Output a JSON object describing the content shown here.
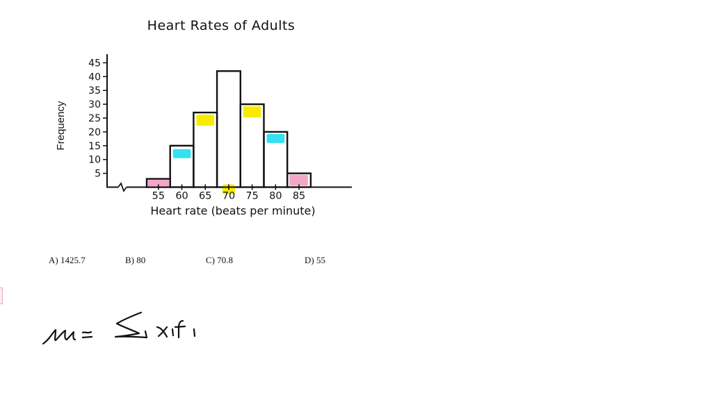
{
  "chart_data": {
    "type": "bar",
    "title": "Heart Rates of Adults",
    "xlabel": "Heart rate (beats per minute)",
    "ylabel": "Frequency",
    "categories": [
      "55",
      "60",
      "65",
      "70",
      "75",
      "80",
      "85"
    ],
    "values": [
      3,
      15,
      27,
      42,
      30,
      20,
      5
    ],
    "yticks": [
      5,
      10,
      15,
      20,
      25,
      30,
      35,
      40,
      45
    ],
    "ylim": [
      0,
      47
    ],
    "grid": false,
    "axis_break": true,
    "highlights": [
      {
        "category": "55",
        "color": "#f4a6c8",
        "note": "pink marker at base of bar"
      },
      {
        "category": "60",
        "color": "#33e1f0",
        "note": "cyan marker near top"
      },
      {
        "category": "65",
        "color": "#f7ec00",
        "note": "yellow marker near top"
      },
      {
        "category": "70",
        "color": "#f7ec00",
        "note": "yellow marker on tick label"
      },
      {
        "category": "75",
        "color": "#f7ec00",
        "note": "yellow marker near top"
      },
      {
        "category": "80",
        "color": "#33e1f0",
        "note": "cyan marker near top"
      },
      {
        "category": "85",
        "color": "#f4a6c8",
        "note": "pink marker filling bar"
      }
    ]
  },
  "question": {
    "choices": [
      {
        "label": "A) 1425.7"
      },
      {
        "label": "B) 80"
      },
      {
        "label": "C) 70.8"
      },
      {
        "label": "D) 55"
      }
    ]
  },
  "handwriting": {
    "text": "μ ≈ Σ xᵢfᵢ"
  },
  "colors": {
    "yellow": "#f7ec00",
    "cyan": "#33e1f0",
    "pink": "#f4a6c8",
    "ink": "#111111"
  }
}
